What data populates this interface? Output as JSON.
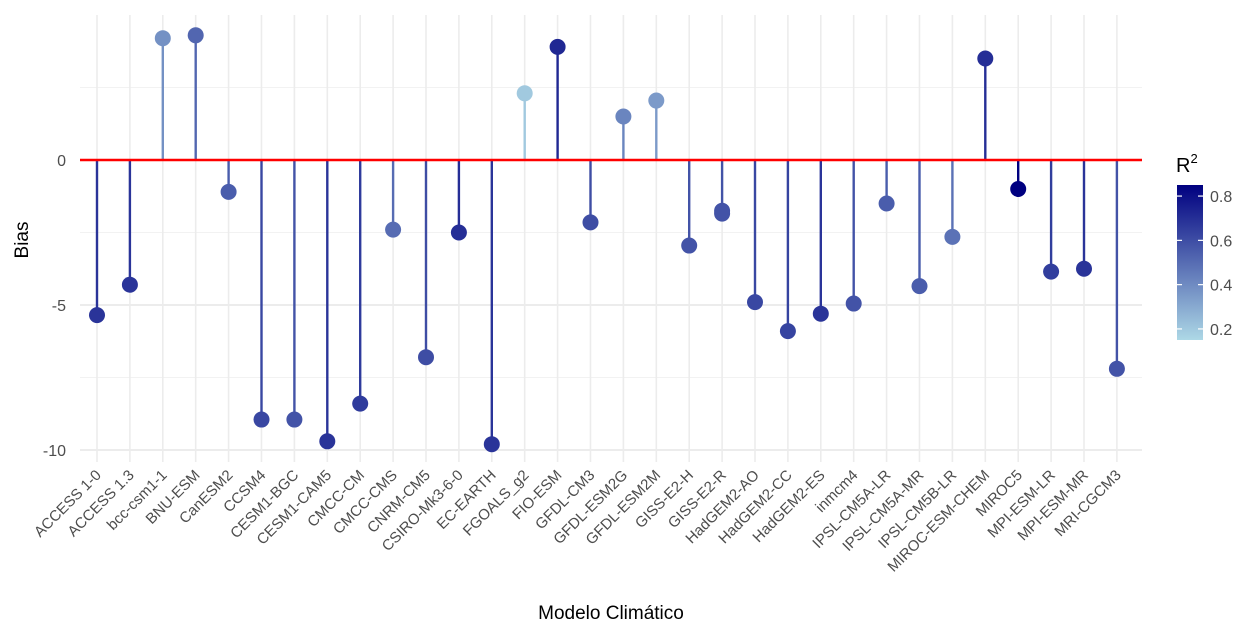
{
  "chart_data": {
    "type": "lollipop",
    "xlabel": "Modelo Climático",
    "ylabel": "Bias",
    "ylim": [
      -10.5,
      5
    ],
    "yticks": [
      0,
      -5,
      -10
    ],
    "grid": true,
    "reference_line": {
      "y": 0,
      "color": "#ff0000"
    },
    "legend": {
      "title_base": "R",
      "title_sup": "2",
      "placement": "right",
      "range": [
        0.15,
        0.85
      ],
      "ticks": [
        0.8,
        0.6,
        0.4,
        0.2
      ],
      "color_low": "#add8e6",
      "color_high": "#000080"
    },
    "categories": [
      "ACCESS 1-0",
      "ACCESS 1.3",
      "bcc-csm1-1",
      "BNU-ESM",
      "CanESM2",
      "CCSM4",
      "CESM1-BGC",
      "CESM1-CAM5",
      "CMCC-CM",
      "CMCC-CMS",
      "CNRM-CM5",
      "CSIRO-Mk3-6-0",
      "EC-EARTH",
      "FGOALS_g2",
      "FIO-ESM",
      "GFDL-CM3",
      "GFDL-ESM2G",
      "GFDL-ESM2M",
      "GISS-E2-H",
      "GISS-E2-R",
      "HadGEM2-AO",
      "HadGEM2-CC",
      "HadGEM2-ES",
      "inmcm4",
      "IPSL-CM5A-LR",
      "IPSL-CM5A-MR",
      "IPSL-CM5B-LR",
      "MIROC-ESM-CHEM",
      "MIROC5",
      "MPI-ESM-LR",
      "MPI-ESM-MR",
      "MRI-CGCM3"
    ],
    "bias": [
      -5.35,
      -4.3,
      4.2,
      4.3,
      -1.1,
      -8.95,
      -8.95,
      -9.7,
      -8.4,
      -2.4,
      -6.8,
      -2.5,
      -9.8,
      2.3,
      3.9,
      -2.15,
      1.5,
      2.05,
      -2.95,
      -1.85,
      -4.9,
      -5.9,
      -5.3,
      -4.95,
      -1.5,
      -4.35,
      -2.65,
      3.5,
      -1.0,
      -3.85,
      -3.75,
      -7.2
    ],
    "r2": [
      0.68,
      0.68,
      0.38,
      0.52,
      0.55,
      0.62,
      0.58,
      0.68,
      0.66,
      0.5,
      0.6,
      0.7,
      0.68,
      0.2,
      0.72,
      0.6,
      0.42,
      0.35,
      0.58,
      0.58,
      0.62,
      0.63,
      0.68,
      0.58,
      0.55,
      0.55,
      0.48,
      0.7,
      0.85,
      0.65,
      0.68,
      0.58
    ],
    "extra_points": [
      {
        "category": "GISS-E2-R",
        "bias": -1.75
      }
    ]
  }
}
